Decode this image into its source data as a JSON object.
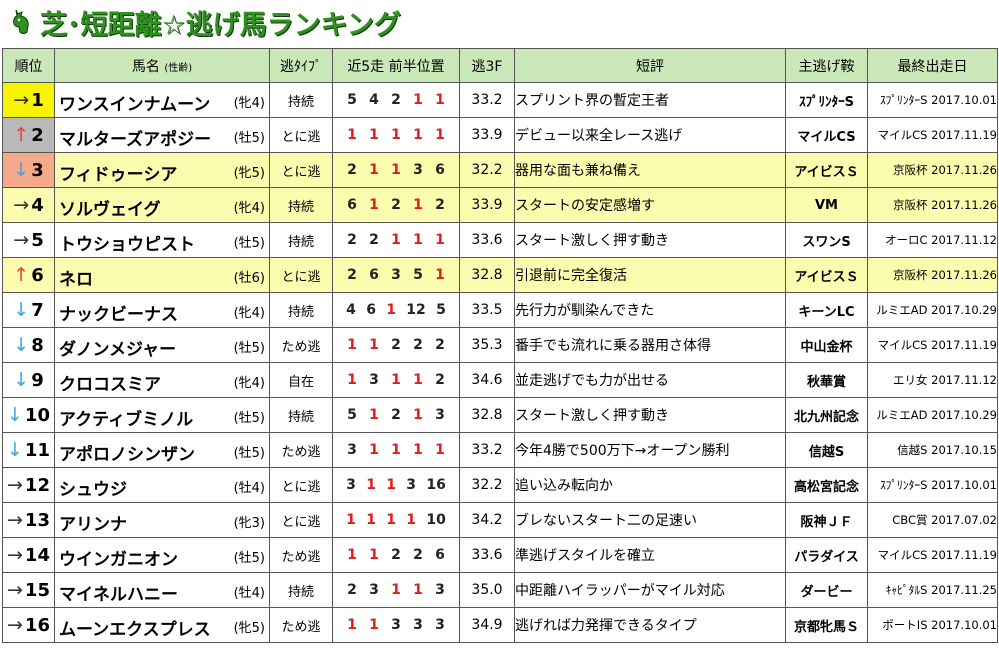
{
  "title": "芝･短距離☆逃げ馬ランキング",
  "colors": {
    "title": "#2f8f1f",
    "header_bg": "#cbe8b9",
    "highlight_row": "#fcfcae",
    "red": "#e21b1b",
    "up_arrow": "#ef3f3f",
    "down_arrow": "#3ba8e0"
  },
  "header": {
    "rank": "順位",
    "name": "馬名",
    "name_sub": "(性齢)",
    "type": "逃ﾀｲﾌﾟ",
    "pos": "近5走 前半位置",
    "f3": "逃3F",
    "comment": "短評",
    "race": "主逃げ鞍",
    "last": "最終出走日"
  },
  "rows": [
    {
      "arrow": "→",
      "arrow_kind": "flat",
      "rank": "1",
      "rank_bg": "yellow",
      "name": "ワンスインナムーン",
      "sex": "(牝4)",
      "type": "持続",
      "pos": [
        {
          "v": "5",
          "r": false
        },
        {
          "v": "4",
          "r": false
        },
        {
          "v": "2",
          "r": false
        },
        {
          "v": "1",
          "r": true
        },
        {
          "v": "1",
          "r": true
        }
      ],
      "f3": "33.2",
      "comment": "スプリント界の暫定王者",
      "race": "ｽﾌﾟﾘﾝﾀｰS",
      "last": "ｽﾌﾟﾘﾝﾀｰS 2017.10.01",
      "hl": false
    },
    {
      "arrow": "↑",
      "arrow_kind": "up",
      "rank": "2",
      "rank_bg": "gray",
      "name": "マルターズアポジー",
      "sex": "(牡5)",
      "type": "とに逃",
      "pos": [
        {
          "v": "1",
          "r": true
        },
        {
          "v": "1",
          "r": true
        },
        {
          "v": "1",
          "r": true
        },
        {
          "v": "1",
          "r": true
        },
        {
          "v": "1",
          "r": true
        }
      ],
      "f3": "33.9",
      "comment": "デビュー以来全レース逃げ",
      "race": "マイルCS",
      "last": "マイルCS 2017.11.19",
      "hl": false
    },
    {
      "arrow": "↓",
      "arrow_kind": "down",
      "rank": "3",
      "rank_bg": "salmon",
      "name": "フィドゥーシア",
      "sex": "(牝5)",
      "type": "とに逃",
      "pos": [
        {
          "v": "2",
          "r": false
        },
        {
          "v": "1",
          "r": true
        },
        {
          "v": "1",
          "r": true
        },
        {
          "v": "3",
          "r": false
        },
        {
          "v": "6",
          "r": false
        }
      ],
      "f3": "32.2",
      "comment": "器用な面も兼ね備え",
      "race": "アイビスＳ",
      "last": "京阪杯 2017.11.26",
      "hl": true
    },
    {
      "arrow": "→",
      "arrow_kind": "flat",
      "rank": "4",
      "rank_bg": "",
      "name": "ソルヴェイグ",
      "sex": "(牝4)",
      "type": "持続",
      "pos": [
        {
          "v": "6",
          "r": false
        },
        {
          "v": "1",
          "r": true
        },
        {
          "v": "2",
          "r": false
        },
        {
          "v": "1",
          "r": true
        },
        {
          "v": "2",
          "r": false
        }
      ],
      "f3": "33.9",
      "comment": "スタートの安定感増す",
      "race": "VM",
      "last": "京阪杯 2017.11.26",
      "hl": true
    },
    {
      "arrow": "→",
      "arrow_kind": "flat",
      "rank": "5",
      "rank_bg": "",
      "name": "トウショウピスト",
      "sex": "(牡5)",
      "type": "持続",
      "pos": [
        {
          "v": "2",
          "r": false
        },
        {
          "v": "2",
          "r": false
        },
        {
          "v": "1",
          "r": true
        },
        {
          "v": "1",
          "r": true
        },
        {
          "v": "1",
          "r": true
        }
      ],
      "f3": "33.6",
      "comment": "スタート激しく押す動き",
      "race": "スワンS",
      "last": "オーロC 2017.11.12",
      "hl": false
    },
    {
      "arrow": "↑",
      "arrow_kind": "up",
      "rank": "6",
      "rank_bg": "",
      "name": "ネロ",
      "sex": "(牡6)",
      "type": "とに逃",
      "pos": [
        {
          "v": "2",
          "r": false
        },
        {
          "v": "6",
          "r": false
        },
        {
          "v": "3",
          "r": false
        },
        {
          "v": "5",
          "r": false
        },
        {
          "v": "1",
          "r": true
        }
      ],
      "f3": "32.8",
      "comment": "引退前に完全復活",
      "race": "アイビスＳ",
      "last": "京阪杯 2017.11.26",
      "hl": true
    },
    {
      "arrow": "↓",
      "arrow_kind": "down",
      "rank": "7",
      "rank_bg": "",
      "name": "ナックビーナス",
      "sex": "(牝4)",
      "type": "持続",
      "pos": [
        {
          "v": "4",
          "r": false
        },
        {
          "v": "6",
          "r": false
        },
        {
          "v": "1",
          "r": true
        },
        {
          "v": "12",
          "r": false
        },
        {
          "v": "5",
          "r": false
        }
      ],
      "f3": "33.5",
      "comment": "先行力が馴染んできた",
      "race": "キーンLC",
      "last": "ルミエAD 2017.10.29",
      "hl": false
    },
    {
      "arrow": "↓",
      "arrow_kind": "down",
      "rank": "8",
      "rank_bg": "",
      "name": "ダノンメジャー",
      "sex": "(牡5)",
      "type": "ため逃",
      "pos": [
        {
          "v": "1",
          "r": true
        },
        {
          "v": "1",
          "r": true
        },
        {
          "v": "2",
          "r": false
        },
        {
          "v": "2",
          "r": false
        },
        {
          "v": "2",
          "r": false
        }
      ],
      "f3": "35.3",
      "comment": "番手でも流れに乗る器用さ体得",
      "race": "中山金杯",
      "last": "マイルCS 2017.11.19",
      "hl": false
    },
    {
      "arrow": "↓",
      "arrow_kind": "down",
      "rank": "9",
      "rank_bg": "",
      "name": "クロコスミア",
      "sex": "(牝4)",
      "type": "自在",
      "pos": [
        {
          "v": "1",
          "r": true
        },
        {
          "v": "3",
          "r": false
        },
        {
          "v": "1",
          "r": true
        },
        {
          "v": "1",
          "r": true
        },
        {
          "v": "2",
          "r": false
        }
      ],
      "f3": "34.6",
      "comment": "並走逃げでも力が出せる",
      "race": "秋華賞",
      "last": "エリ女 2017.11.12",
      "hl": false
    },
    {
      "arrow": "↓",
      "arrow_kind": "down",
      "rank": "10",
      "rank_bg": "",
      "name": "アクティブミノル",
      "sex": "(牡5)",
      "type": "持続",
      "pos": [
        {
          "v": "5",
          "r": false
        },
        {
          "v": "1",
          "r": true
        },
        {
          "v": "2",
          "r": false
        },
        {
          "v": "1",
          "r": true
        },
        {
          "v": "3",
          "r": false
        }
      ],
      "f3": "32.8",
      "comment": "スタート激しく押す動き",
      "race": "北九州記念",
      "last": "ルミエAD 2017.10.29",
      "hl": false
    },
    {
      "arrow": "↓",
      "arrow_kind": "down",
      "rank": "11",
      "rank_bg": "",
      "name": "アポロノシンザン",
      "sex": "(牡5)",
      "type": "ため逃",
      "pos": [
        {
          "v": "3",
          "r": false
        },
        {
          "v": "1",
          "r": true
        },
        {
          "v": "1",
          "r": true
        },
        {
          "v": "1",
          "r": true
        },
        {
          "v": "1",
          "r": true
        }
      ],
      "f3": "33.2",
      "comment": "今年4勝で500万下→オープン勝利",
      "race": "信越S",
      "last": "信越S 2017.10.15",
      "hl": false
    },
    {
      "arrow": "→",
      "arrow_kind": "flat",
      "rank": "12",
      "rank_bg": "",
      "name": "シュウジ",
      "sex": "(牡4)",
      "type": "とに逃",
      "pos": [
        {
          "v": "3",
          "r": false
        },
        {
          "v": "1",
          "r": true
        },
        {
          "v": "1",
          "r": true
        },
        {
          "v": "3",
          "r": false
        },
        {
          "v": "16",
          "r": false
        }
      ],
      "f3": "32.2",
      "comment": "追い込み転向か",
      "race": "高松宮記念",
      "last": "ｽﾌﾟﾘﾝﾀｰS 2017.10.01",
      "hl": false
    },
    {
      "arrow": "→",
      "arrow_kind": "flat",
      "rank": "13",
      "rank_bg": "",
      "name": "アリンナ",
      "sex": "(牝3)",
      "type": "とに逃",
      "pos": [
        {
          "v": "1",
          "r": true
        },
        {
          "v": "1",
          "r": true
        },
        {
          "v": "1",
          "r": true
        },
        {
          "v": "1",
          "r": true
        },
        {
          "v": "10",
          "r": false
        }
      ],
      "f3": "34.2",
      "comment": "ブレないスタート二の足速い",
      "race": "阪神ＪＦ",
      "last": "CBC賞 2017.07.02",
      "hl": false
    },
    {
      "arrow": "→",
      "arrow_kind": "flat",
      "rank": "14",
      "rank_bg": "",
      "name": "ウインガニオン",
      "sex": "(牡5)",
      "type": "ため逃",
      "pos": [
        {
          "v": "1",
          "r": true
        },
        {
          "v": "1",
          "r": true
        },
        {
          "v": "2",
          "r": false
        },
        {
          "v": "2",
          "r": false
        },
        {
          "v": "6",
          "r": false
        }
      ],
      "f3": "33.6",
      "comment": "準逃げスタイルを確立",
      "race": "パラダイス",
      "last": "マイルCS 2017.11.19",
      "hl": false
    },
    {
      "arrow": "→",
      "arrow_kind": "flat",
      "rank": "15",
      "rank_bg": "",
      "name": "マイネルハニー",
      "sex": "(牡4)",
      "type": "持続",
      "pos": [
        {
          "v": "2",
          "r": false
        },
        {
          "v": "3",
          "r": false
        },
        {
          "v": "1",
          "r": true
        },
        {
          "v": "1",
          "r": true
        },
        {
          "v": "3",
          "r": false
        }
      ],
      "f3": "35.0",
      "comment": "中距離ハイラッパーがマイル対応",
      "race": "ダービー",
      "last": "ｷｬﾋﾟﾀﾙS 2017.11.25",
      "hl": false
    },
    {
      "arrow": "→",
      "arrow_kind": "flat",
      "rank": "16",
      "rank_bg": "",
      "name": "ムーンエクスプレス",
      "sex": "(牝5)",
      "type": "ため逃",
      "pos": [
        {
          "v": "1",
          "r": true
        },
        {
          "v": "1",
          "r": true
        },
        {
          "v": "3",
          "r": false
        },
        {
          "v": "3",
          "r": false
        },
        {
          "v": "3",
          "r": false
        }
      ],
      "f3": "34.9",
      "comment": "逃げれば力発揮できるタイプ",
      "race": "京都牝馬Ｓ",
      "last": "ポートIS 2017.10.01",
      "hl": false
    }
  ]
}
